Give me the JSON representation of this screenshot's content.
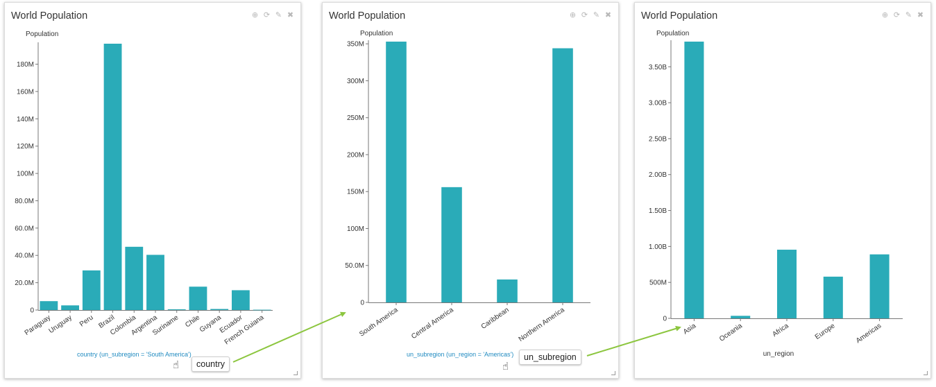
{
  "colors": {
    "bar": "#2aabb8",
    "arrow": "#8cc63f",
    "link": "#1f8ac0"
  },
  "panels": [
    {
      "title": "World Population",
      "tools": [
        "download-icon",
        "refresh-icon",
        "edit-icon",
        "close-icon"
      ],
      "drill_label": "country (un_subregion = 'South America')",
      "pill": "country",
      "xlabel": "",
      "chart_data": {
        "type": "bar",
        "ylabel": "Population",
        "ylim": [
          0,
          195000000
        ],
        "ticks": [
          {
            "v": 0,
            "t": "0"
          },
          {
            "v": 20000000,
            "t": "20.0M"
          },
          {
            "v": 40000000,
            "t": "40.0M"
          },
          {
            "v": 60000000,
            "t": "60.0M"
          },
          {
            "v": 80000000,
            "t": "80.0M"
          },
          {
            "v": 100000000,
            "t": "100M"
          },
          {
            "v": 120000000,
            "t": "120M"
          },
          {
            "v": 140000000,
            "t": "140M"
          },
          {
            "v": 160000000,
            "t": "160M"
          },
          {
            "v": 180000000,
            "t": "180M"
          }
        ],
        "categories": [
          "Paraguay",
          "Uruguay",
          "Peru",
          "Brazil",
          "Colombia",
          "Argentina",
          "Suriname",
          "Chile",
          "Guyana",
          "Ecuador",
          "French Guiana"
        ],
        "values": [
          6500000,
          3400000,
          29000000,
          195000000,
          46300000,
          40400000,
          500000,
          17100000,
          750000,
          14500000,
          220000
        ]
      }
    },
    {
      "title": "World Population",
      "tools": [
        "download-icon",
        "refresh-icon",
        "edit-icon",
        "close-icon"
      ],
      "drill_label": "un_subregion (un_region = 'Americas')",
      "pill": "un_subregion",
      "xlabel": "",
      "chart_data": {
        "type": "bar",
        "ylabel": "Population",
        "ylim": [
          0,
          353000000
        ],
        "ticks": [
          {
            "v": 0,
            "t": "0"
          },
          {
            "v": 50000000,
            "t": "50.0M"
          },
          {
            "v": 100000000,
            "t": "100M"
          },
          {
            "v": 150000000,
            "t": "150M"
          },
          {
            "v": 200000000,
            "t": "200M"
          },
          {
            "v": 250000000,
            "t": "250M"
          },
          {
            "v": 300000000,
            "t": "300M"
          },
          {
            "v": 350000000,
            "t": "350M"
          }
        ],
        "categories": [
          "South America",
          "Central America",
          "Caribbean",
          "Northern America"
        ],
        "values": [
          353000000,
          156000000,
          31000000,
          344000000
        ]
      }
    },
    {
      "title": "World Population",
      "tools": [
        "download-icon",
        "refresh-icon",
        "edit-icon",
        "close-icon"
      ],
      "drill_label": "",
      "pill": "",
      "xlabel": "un_region",
      "chart_data": {
        "type": "bar",
        "ylabel": "Population",
        "ylim": [
          0,
          3850000000
        ],
        "ticks": [
          {
            "v": 0,
            "t": "0"
          },
          {
            "v": 500000000,
            "t": "500M"
          },
          {
            "v": 1000000000,
            "t": "1.00B"
          },
          {
            "v": 1500000000,
            "t": "1.50B"
          },
          {
            "v": 2000000000,
            "t": "2.00B"
          },
          {
            "v": 2500000000,
            "t": "2.50B"
          },
          {
            "v": 3000000000,
            "t": "3.00B"
          },
          {
            "v": 3500000000,
            "t": "3.50B"
          }
        ],
        "categories": [
          "Asia",
          "Oceania",
          "Africa",
          "Europe",
          "Americas"
        ],
        "values": [
          3850000000,
          35000000,
          955000000,
          580000000,
          890000000
        ]
      }
    }
  ]
}
